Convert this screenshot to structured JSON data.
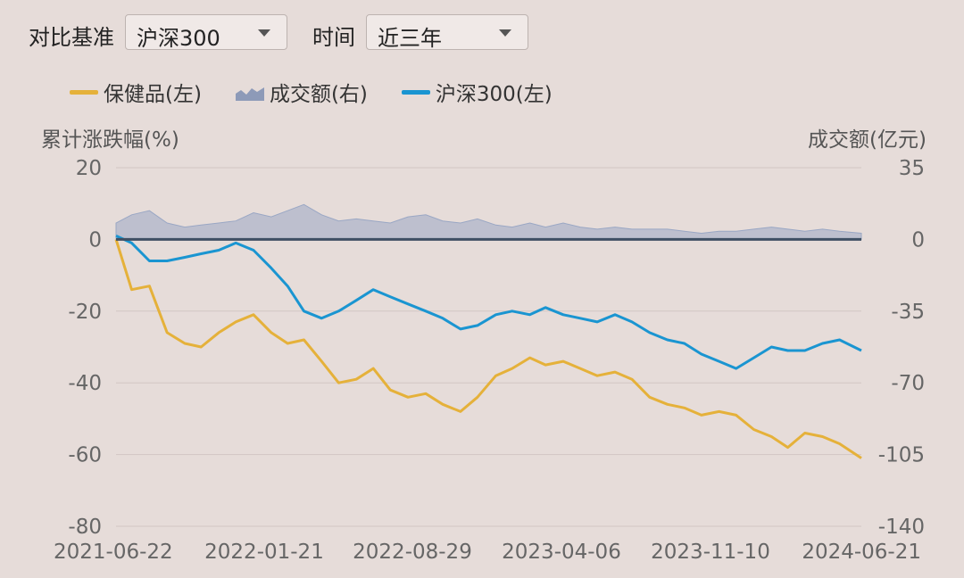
{
  "controls": {
    "compare_label": "对比基准",
    "compare_value": "沪深300",
    "time_label": "时间",
    "time_value": "近三年"
  },
  "legend": {
    "items": [
      {
        "name": "保健品(左)",
        "color": "#e5b13a",
        "kind": "line"
      },
      {
        "name": "成交额(右)",
        "color": "#9aa7c4",
        "kind": "area"
      },
      {
        "name": "沪深300(左)",
        "color": "#1a95d1",
        "kind": "line"
      }
    ]
  },
  "chart_data": {
    "type": "line",
    "ylabel_left": "累计涨跌幅(%)",
    "ylabel_right": "成交额(亿元)",
    "x_ticks": [
      "2021-06-22",
      "2022-01-21",
      "2022-08-29",
      "2023-04-06",
      "2023-11-10",
      "2024-06-21"
    ],
    "y_left_ticks": [
      20,
      0,
      -20,
      -40,
      -60,
      -80
    ],
    "y_right_ticks": [
      35,
      0,
      -35,
      -70,
      -105,
      -140
    ],
    "ylim_left": [
      -80,
      20
    ],
    "ylim_right": [
      -140,
      35
    ],
    "x": [
      "2021-06-22",
      "2021-07-15",
      "2021-08-10",
      "2021-09-05",
      "2021-10-01",
      "2021-10-25",
      "2021-11-20",
      "2021-12-15",
      "2022-01-10",
      "2022-02-05",
      "2022-03-01",
      "2022-03-25",
      "2022-04-20",
      "2022-05-15",
      "2022-06-10",
      "2022-07-05",
      "2022-07-30",
      "2022-08-25",
      "2022-09-20",
      "2022-10-15",
      "2022-11-10",
      "2022-12-05",
      "2023-01-01",
      "2023-01-25",
      "2023-02-20",
      "2023-03-15",
      "2023-04-10",
      "2023-05-05",
      "2023-05-30",
      "2023-06-25",
      "2023-07-20",
      "2023-08-15",
      "2023-09-10",
      "2023-10-05",
      "2023-10-30",
      "2023-11-25",
      "2023-12-20",
      "2024-01-15",
      "2024-02-10",
      "2024-03-05",
      "2024-03-30",
      "2024-04-25",
      "2024-05-20",
      "2024-06-21"
    ],
    "series": [
      {
        "name": "保健品(左)",
        "color": "#e5b13a",
        "axis": "left",
        "values": [
          0,
          -14,
          -13,
          -26,
          -29,
          -30,
          -26,
          -23,
          -21,
          -26,
          -29,
          -28,
          -34,
          -40,
          -39,
          -36,
          -42,
          -44,
          -43,
          -46,
          -48,
          -44,
          -38,
          -36,
          -33,
          -35,
          -34,
          -36,
          -38,
          -37,
          -39,
          -44,
          -46,
          -47,
          -49,
          -48,
          -49,
          -53,
          -55,
          -58,
          -54,
          -55,
          -57,
          -61
        ]
      },
      {
        "name": "沪深300(左)",
        "color": "#1a95d1",
        "axis": "left",
        "values": [
          1,
          -1,
          -6,
          -6,
          -5,
          -4,
          -3,
          -1,
          -3,
          -8,
          -13,
          -20,
          -22,
          -20,
          -17,
          -14,
          -16,
          -18,
          -20,
          -22,
          -25,
          -24,
          -21,
          -20,
          -21,
          -19,
          -21,
          -22,
          -23,
          -21,
          -23,
          -26,
          -28,
          -29,
          -32,
          -34,
          -36,
          -33,
          -30,
          -31,
          -31,
          -29,
          -28,
          -31
        ]
      },
      {
        "name": "成交额(右)",
        "color": "#9aa7c4",
        "axis": "right",
        "values": [
          8,
          12,
          14,
          8,
          6,
          7,
          8,
          9,
          13,
          11,
          14,
          17,
          12,
          9,
          10,
          9,
          8,
          11,
          12,
          9,
          8,
          10,
          7,
          6,
          8,
          6,
          8,
          6,
          5,
          6,
          5,
          5,
          5,
          4,
          3,
          4,
          4,
          5,
          6,
          5,
          4,
          5,
          4,
          3
        ]
      }
    ]
  }
}
